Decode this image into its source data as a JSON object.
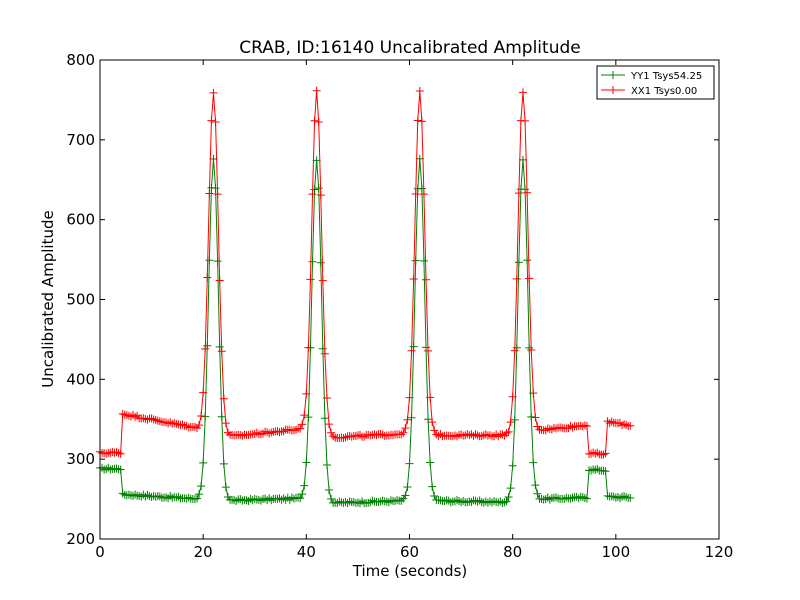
{
  "chart_data": {
    "type": "line",
    "title": "CRAB, ID:16140 Uncalibrated Amplitude",
    "xlabel": "Time (seconds)",
    "ylabel": "Uncalibrated Amplitude",
    "xlim": [
      0,
      120
    ],
    "ylim": [
      200,
      800
    ],
    "xticks": [
      "0",
      "20",
      "40",
      "60",
      "80",
      "100",
      "120"
    ],
    "yticks": [
      "200",
      "300",
      "400",
      "500",
      "600",
      "700",
      "800"
    ],
    "grid": false,
    "legend_position": "top-right",
    "marker": "+",
    "sample_step": 0.4,
    "x_range": [
      0,
      103
    ],
    "peak_centers": [
      22,
      42,
      62,
      82
    ],
    "series": [
      {
        "name": "YY1 Tsys54.25",
        "color": "#008000",
        "segments": [
          {
            "x": [
              0,
              4.2
            ],
            "start": 288,
            "end": 288
          },
          {
            "x": [
              4.2,
              19.5
            ],
            "start": 256,
            "end": 250
          },
          {
            "x": [
              24.5,
              39.5
            ],
            "start": 248,
            "end": 251
          },
          {
            "x": [
              44.5,
              59.5
            ],
            "start": 245,
            "end": 248
          },
          {
            "x": [
              64.5,
              79.5
            ],
            "start": 248,
            "end": 246
          },
          {
            "x": [
              84.5,
              94.8
            ],
            "start": 250,
            "end": 252
          },
          {
            "x": [
              94.8,
              98.2
            ],
            "start": 287,
            "end": 286
          },
          {
            "x": [
              98.2,
              103
            ],
            "start": 253,
            "end": 252
          }
        ],
        "peak_amplitude": 675,
        "peak_width": 0.95
      },
      {
        "name": "XX1 Tsys0.00",
        "color": "#ff0000",
        "segments": [
          {
            "x": [
              0,
              4.2
            ],
            "start": 308,
            "end": 308
          },
          {
            "x": [
              4.2,
              19.5
            ],
            "start": 357,
            "end": 338
          },
          {
            "x": [
              24.5,
              39.5
            ],
            "start": 328,
            "end": 338
          },
          {
            "x": [
              44.5,
              59.5
            ],
            "start": 327,
            "end": 332
          },
          {
            "x": [
              64.5,
              79.5
            ],
            "start": 330,
            "end": 330
          },
          {
            "x": [
              84.5,
              94.8
            ],
            "start": 336,
            "end": 343
          },
          {
            "x": [
              94.8,
              98.2
            ],
            "start": 307,
            "end": 306
          },
          {
            "x": [
              98.2,
              103
            ],
            "start": 347,
            "end": 342
          }
        ],
        "peak_amplitude": 760,
        "peak_width": 0.95
      }
    ]
  }
}
